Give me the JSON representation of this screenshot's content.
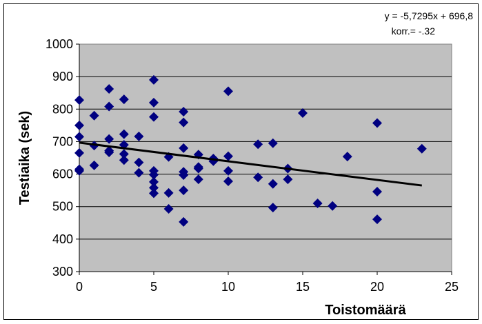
{
  "chart_data": {
    "type": "scatter",
    "xlabel": "Toistomäärä",
    "ylabel": "Testiaika (sek)",
    "xlim": [
      0,
      25
    ],
    "ylim": [
      300,
      1000
    ],
    "x_ticks": [
      0,
      5,
      10,
      15,
      20,
      25
    ],
    "y_ticks": [
      300,
      400,
      500,
      600,
      700,
      800,
      900,
      1000
    ],
    "grid": "horizontal",
    "plot_background": "#c0c0c0",
    "marker_color": "#000080",
    "trendline_color": "#000000",
    "trendline": {
      "equation": "y = -5,7295x + 696,8",
      "correlation": "korr.= -.32",
      "slope": -5.7295,
      "intercept": 696.8,
      "x_range": [
        0,
        23
      ]
    },
    "points": [
      {
        "x": 0,
        "y": 828
      },
      {
        "x": 0,
        "y": 750
      },
      {
        "x": 0,
        "y": 715
      },
      {
        "x": 0,
        "y": 665
      },
      {
        "x": 0,
        "y": 615
      },
      {
        "x": 0,
        "y": 610
      },
      {
        "x": 1,
        "y": 780
      },
      {
        "x": 1,
        "y": 688
      },
      {
        "x": 1,
        "y": 627
      },
      {
        "x": 2,
        "y": 862
      },
      {
        "x": 2,
        "y": 808
      },
      {
        "x": 2,
        "y": 708
      },
      {
        "x": 2,
        "y": 672
      },
      {
        "x": 2,
        "y": 667
      },
      {
        "x": 3,
        "y": 830
      },
      {
        "x": 3,
        "y": 723
      },
      {
        "x": 3,
        "y": 690
      },
      {
        "x": 3,
        "y": 662
      },
      {
        "x": 3,
        "y": 643
      },
      {
        "x": 4,
        "y": 716
      },
      {
        "x": 4,
        "y": 636
      },
      {
        "x": 4,
        "y": 604
      },
      {
        "x": 5,
        "y": 890
      },
      {
        "x": 5,
        "y": 820
      },
      {
        "x": 5,
        "y": 776
      },
      {
        "x": 5,
        "y": 610
      },
      {
        "x": 5,
        "y": 598
      },
      {
        "x": 5,
        "y": 576
      },
      {
        "x": 5,
        "y": 558
      },
      {
        "x": 5,
        "y": 541
      },
      {
        "x": 6,
        "y": 653
      },
      {
        "x": 6,
        "y": 542
      },
      {
        "x": 6,
        "y": 493
      },
      {
        "x": 7,
        "y": 792
      },
      {
        "x": 7,
        "y": 759
      },
      {
        "x": 7,
        "y": 680
      },
      {
        "x": 7,
        "y": 607
      },
      {
        "x": 7,
        "y": 597
      },
      {
        "x": 7,
        "y": 550
      },
      {
        "x": 7,
        "y": 453
      },
      {
        "x": 8,
        "y": 660
      },
      {
        "x": 8,
        "y": 622
      },
      {
        "x": 8,
        "y": 617
      },
      {
        "x": 8,
        "y": 584
      },
      {
        "x": 9,
        "y": 648
      },
      {
        "x": 9,
        "y": 640
      },
      {
        "x": 10,
        "y": 855
      },
      {
        "x": 10,
        "y": 655
      },
      {
        "x": 10,
        "y": 610
      },
      {
        "x": 10,
        "y": 578
      },
      {
        "x": 12,
        "y": 692
      },
      {
        "x": 12,
        "y": 590
      },
      {
        "x": 13,
        "y": 695
      },
      {
        "x": 13,
        "y": 570
      },
      {
        "x": 13,
        "y": 497
      },
      {
        "x": 14,
        "y": 617
      },
      {
        "x": 14,
        "y": 584
      },
      {
        "x": 15,
        "y": 788
      },
      {
        "x": 16,
        "y": 510
      },
      {
        "x": 17,
        "y": 502
      },
      {
        "x": 18,
        "y": 654
      },
      {
        "x": 20,
        "y": 757
      },
      {
        "x": 20,
        "y": 546
      },
      {
        "x": 20,
        "y": 461
      },
      {
        "x": 23,
        "y": 678
      }
    ]
  }
}
